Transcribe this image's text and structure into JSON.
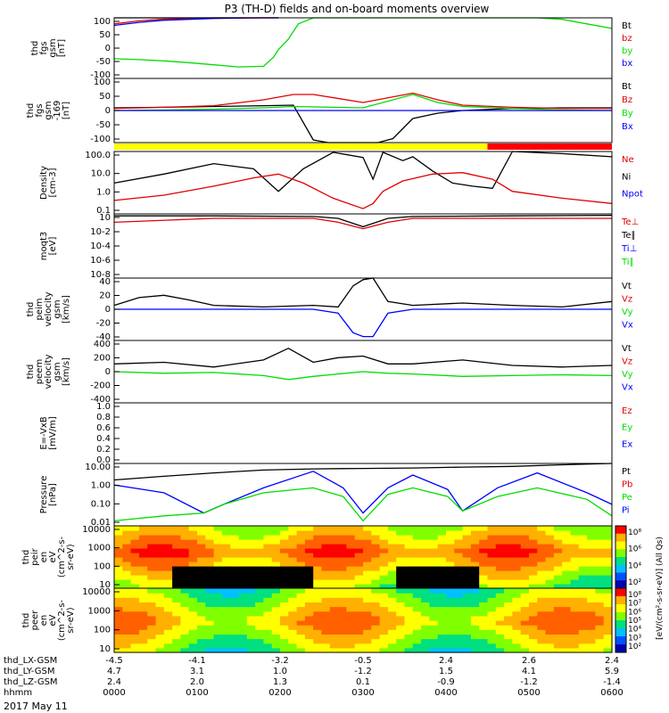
{
  "title": "P3 (TH-D) fields and on-board moments overview",
  "date_label": "2017 May 11",
  "colors": {
    "black": "#000000",
    "red": "#e00000",
    "green": "#00dd00",
    "blue": "#0000ff",
    "yellow": "#ffff00",
    "barred": "#ff0000"
  },
  "chart_data": [
    {
      "id": "fgs",
      "type": "line",
      "ylabel": [
        "thd",
        "fgs",
        "gsm",
        "[nT]"
      ],
      "yticks": [
        "100",
        "50",
        "0",
        "-50",
        "-100"
      ],
      "ylim": [
        -100,
        100
      ],
      "legend": [
        {
          "label": "Bt",
          "color": "black"
        },
        {
          "label": "bz",
          "color": "red"
        },
        {
          "label": "by",
          "color": "green"
        },
        {
          "label": "bx",
          "color": "blue"
        }
      ],
      "series": [
        {
          "name": "Bt",
          "color": "black",
          "x": [
            0,
            0.05,
            0.1,
            0.2,
            0.3,
            0.33
          ],
          "y": [
            100,
            100,
            100,
            100,
            100,
            100
          ]
        },
        {
          "name": "bz",
          "color": "red",
          "x": [
            0,
            0.05,
            0.1,
            0.2,
            0.3,
            0.33
          ],
          "y": [
            80,
            90,
            96,
            100,
            100,
            100
          ]
        },
        {
          "name": "by",
          "color": "green",
          "x": [
            0,
            0.05,
            0.1,
            0.15,
            0.2,
            0.25,
            0.3,
            0.32,
            0.33,
            0.35,
            0.37,
            0.4,
            0.43,
            0.45,
            0.47,
            0.48,
            0.49,
            0.5,
            0.52,
            0.55,
            0.57,
            0.6,
            0.63,
            0.66,
            0.69,
            0.72,
            0.75,
            0.8,
            0.85,
            0.9,
            0.95,
            1.0
          ],
          "y": [
            -35,
            -38,
            -42,
            -48,
            -55,
            -62,
            -60,
            -30,
            -5,
            30,
            80,
            100,
            100,
            100,
            100,
            100,
            100,
            100,
            100,
            100,
            100,
            100,
            100,
            100,
            100,
            100,
            100,
            100,
            100,
            95,
            80,
            65
          ]
        },
        {
          "name": "bx",
          "color": "blue",
          "x": [
            0,
            0.05,
            0.1,
            0.2,
            0.3,
            0.33
          ],
          "y": [
            75,
            85,
            92,
            98,
            100,
            100
          ]
        }
      ]
    },
    {
      "id": "fgs2",
      "type": "line",
      "ylabel": [
        "thd",
        "fgs",
        "gsm",
        "-169",
        "[nT]"
      ],
      "yticks": [
        "100",
        "50",
        "0",
        "-50",
        "-100"
      ],
      "ylim": [
        -120,
        120
      ],
      "legend": [
        {
          "label": "Bt",
          "color": "black"
        },
        {
          "label": "Bz",
          "color": "red"
        },
        {
          "label": "By",
          "color": "green"
        },
        {
          "label": "Bx",
          "color": "blue"
        }
      ],
      "series": [
        {
          "name": "Bt",
          "color": "black",
          "x": [
            0,
            0.1,
            0.2,
            0.3,
            0.36,
            0.4,
            0.43,
            0.45,
            0.5,
            0.53,
            0.56,
            0.6,
            0.65,
            0.7,
            0.8,
            0.9,
            1.0
          ],
          "y": [
            10,
            12,
            15,
            18,
            20,
            -110,
            -120,
            -125,
            -130,
            -120,
            -105,
            -30,
            -10,
            0,
            8,
            10,
            10
          ]
        },
        {
          "name": "Bz",
          "color": "red",
          "x": [
            0,
            0.1,
            0.2,
            0.3,
            0.36,
            0.4,
            0.5,
            0.6,
            0.65,
            0.7,
            0.8,
            0.9,
            1.0
          ],
          "y": [
            8,
            12,
            18,
            40,
            60,
            60,
            30,
            65,
            40,
            20,
            12,
            8,
            8
          ]
        },
        {
          "name": "By",
          "color": "green",
          "x": [
            0,
            0.1,
            0.2,
            0.3,
            0.36,
            0.5,
            0.6,
            0.65,
            0.7,
            0.8,
            0.9,
            1.0
          ],
          "y": [
            0,
            2,
            5,
            10,
            15,
            10,
            60,
            30,
            15,
            8,
            2,
            0
          ]
        },
        {
          "name": "Bx",
          "color": "blue",
          "x": [
            0,
            0.2,
            0.4,
            0.6,
            0.8,
            1.0
          ],
          "y": [
            0,
            0,
            0,
            0,
            0,
            0
          ]
        }
      ]
    },
    {
      "id": "density",
      "type": "line",
      "log": true,
      "ylabel": [
        "Density",
        "[cm-3]"
      ],
      "yticks": [
        "100.0",
        "10.0",
        "1.0",
        "0.1"
      ],
      "ylim": [
        0.05,
        200
      ],
      "legend": [
        {
          "label": "Ne",
          "color": "red"
        },
        {
          "label": "Ni",
          "color": "black"
        },
        {
          "label": "Npot",
          "color": "blue"
        }
      ],
      "series": [
        {
          "name": "Ni",
          "color": "black",
          "x": [
            0,
            0.1,
            0.2,
            0.28,
            0.33,
            0.38,
            0.44,
            0.5,
            0.52,
            0.54,
            0.58,
            0.6,
            0.64,
            0.68,
            0.72,
            0.76,
            0.8,
            0.9,
            1.0
          ],
          "y": [
            3,
            10,
            40,
            20,
            1,
            20,
            180,
            90,
            5,
            180,
            60,
            100,
            15,
            3,
            2,
            1.5,
            200,
            150,
            100
          ]
        },
        {
          "name": "Ne",
          "color": "red",
          "x": [
            0,
            0.1,
            0.2,
            0.28,
            0.33,
            0.38,
            0.44,
            0.5,
            0.52,
            0.54,
            0.58,
            0.64,
            0.7,
            0.76,
            0.8,
            0.9,
            1.0
          ],
          "y": [
            0.3,
            0.6,
            2,
            6,
            10,
            3,
            0.4,
            0.1,
            0.2,
            1,
            4,
            10,
            12,
            5,
            1,
            0.4,
            0.2
          ]
        }
      ]
    },
    {
      "id": "moqt3",
      "type": "line",
      "log": true,
      "ylabel": [
        "moqt3",
        "[eV]"
      ],
      "yticks": [
        "10",
        "10-2",
        "10-4",
        "10-6",
        "10-8"
      ],
      "ylim": [
        1e-08,
        100
      ],
      "legend": [
        {
          "label": "Te⊥",
          "color": "red"
        },
        {
          "label": "Te∥",
          "color": "black"
        },
        {
          "label": "Ti⊥",
          "color": "blue"
        },
        {
          "label": "Ti∥",
          "color": "green"
        }
      ],
      "series": [
        {
          "name": "Te",
          "color": "black",
          "x": [
            0,
            0.2,
            0.4,
            0.45,
            0.5,
            0.55,
            0.6,
            0.8,
            1.0
          ],
          "y": [
            50,
            50,
            40,
            20,
            1,
            20,
            40,
            50,
            60
          ]
        },
        {
          "name": "Ti",
          "color": "red",
          "x": [
            0,
            0.2,
            0.4,
            0.45,
            0.5,
            0.55,
            0.6,
            0.8,
            1.0
          ],
          "y": [
            5,
            20,
            20,
            5,
            0.5,
            5,
            20,
            20,
            20
          ]
        }
      ]
    },
    {
      "id": "peim",
      "type": "line",
      "ylabel": [
        "thd",
        "peim",
        "velocity",
        "gsm",
        "[km/s]"
      ],
      "yticks": [
        "40",
        "20",
        "0",
        "-20",
        "-40"
      ],
      "ylim": [
        -40,
        40
      ],
      "legend": [
        {
          "label": "Vt",
          "color": "black"
        },
        {
          "label": "Vz",
          "color": "red"
        },
        {
          "label": "Vy",
          "color": "green"
        },
        {
          "label": "Vx",
          "color": "blue"
        }
      ],
      "series": [
        {
          "name": "Vt",
          "color": "black",
          "x": [
            0,
            0.05,
            0.1,
            0.15,
            0.2,
            0.3,
            0.4,
            0.45,
            0.48,
            0.5,
            0.52,
            0.55,
            0.6,
            0.7,
            0.8,
            0.9,
            1.0
          ],
          "y": [
            5,
            15,
            18,
            12,
            5,
            3,
            5,
            3,
            30,
            38,
            40,
            10,
            5,
            8,
            5,
            3,
            10
          ]
        },
        {
          "name": "Vx",
          "color": "blue",
          "x": [
            0,
            0.2,
            0.4,
            0.45,
            0.48,
            0.5,
            0.52,
            0.55,
            0.6,
            0.8,
            1.0
          ],
          "y": [
            0,
            0,
            0,
            -5,
            -30,
            -35,
            -35,
            -5,
            0,
            0,
            0
          ]
        }
      ]
    },
    {
      "id": "peem",
      "type": "line",
      "ylabel": [
        "thd",
        "peem",
        "velocity",
        "gsm",
        "[km/s]"
      ],
      "yticks": [
        "400",
        "200",
        "0",
        "-200",
        "-400"
      ],
      "ylim": [
        -400,
        400
      ],
      "legend": [
        {
          "label": "Vt",
          "color": "black"
        },
        {
          "label": "Vz",
          "color": "red"
        },
        {
          "label": "Vy",
          "color": "green"
        },
        {
          "label": "Vx",
          "color": "blue"
        }
      ],
      "series": [
        {
          "name": "Vt",
          "color": "black",
          "x": [
            0,
            0.1,
            0.2,
            0.3,
            0.35,
            0.4,
            0.45,
            0.5,
            0.55,
            0.6,
            0.7,
            0.8,
            0.9,
            1.0
          ],
          "y": [
            100,
            120,
            60,
            150,
            300,
            120,
            180,
            200,
            100,
            100,
            150,
            80,
            60,
            80
          ]
        },
        {
          "name": "Vy",
          "color": "green",
          "x": [
            0,
            0.1,
            0.2,
            0.3,
            0.35,
            0.4,
            0.45,
            0.5,
            0.55,
            0.6,
            0.7,
            0.8,
            0.9,
            1.0
          ],
          "y": [
            0,
            -20,
            -10,
            -50,
            -100,
            -60,
            -30,
            0,
            -20,
            -30,
            -60,
            -50,
            -40,
            -50
          ]
        }
      ]
    },
    {
      "id": "efield",
      "type": "line",
      "ylabel": [
        "E=-VxB",
        "[mV/m]"
      ],
      "yticks": [
        "1.0",
        "0.8",
        "0.6",
        "0.4",
        "0.2",
        "0.0"
      ],
      "ylim": [
        0,
        1
      ],
      "legend": [
        {
          "label": "Ez",
          "color": "red"
        },
        {
          "label": "Ey",
          "color": "green"
        },
        {
          "label": "Ex",
          "color": "blue"
        }
      ],
      "series": []
    },
    {
      "id": "pressure",
      "type": "line",
      "log": true,
      "ylabel": [
        "Pressure",
        "[nPa]"
      ],
      "yticks": [
        "10.00",
        "1.00",
        "0.10",
        "0.01"
      ],
      "ylim": [
        0.005,
        30
      ],
      "legend": [
        {
          "label": "Pt",
          "color": "black"
        },
        {
          "label": "Pb",
          "color": "red"
        },
        {
          "label": "Pe",
          "color": "green"
        },
        {
          "label": "Pi",
          "color": "blue"
        }
      ],
      "series": [
        {
          "name": "Pt",
          "color": "black",
          "x": [
            0,
            0.1,
            0.2,
            0.3,
            0.4,
            0.5,
            0.6,
            0.7,
            0.8,
            0.9,
            1.0
          ],
          "y": [
            3,
            5,
            8,
            12,
            14,
            15,
            16,
            18,
            20,
            25,
            30
          ]
        },
        {
          "name": "Pi",
          "color": "blue",
          "x": [
            0,
            0.1,
            0.18,
            0.22,
            0.3,
            0.4,
            0.46,
            0.5,
            0.55,
            0.6,
            0.67,
            0.7,
            0.77,
            0.85,
            0.95,
            1.0
          ],
          "y": [
            1.5,
            0.5,
            0.03,
            0.1,
            1,
            10,
            1,
            0.03,
            1,
            6,
            0.8,
            0.04,
            1,
            8,
            0.5,
            0.1
          ]
        },
        {
          "name": "Pe",
          "color": "green",
          "x": [
            0,
            0.1,
            0.18,
            0.22,
            0.3,
            0.4,
            0.46,
            0.5,
            0.55,
            0.6,
            0.67,
            0.7,
            0.77,
            0.85,
            0.95,
            1.0
          ],
          "y": [
            0.01,
            0.02,
            0.03,
            0.1,
            0.5,
            1,
            0.3,
            0.01,
            0.4,
            1,
            0.3,
            0.04,
            0.3,
            1,
            0.2,
            0.02
          ]
        }
      ]
    },
    {
      "id": "peir",
      "type": "heatmap",
      "ylabel": [
        "thd",
        "peir",
        "en",
        "eV",
        "(cm^2-s-",
        "sr-eV)"
      ],
      "yticks": [
        "10000",
        "1000",
        "100",
        "10"
      ],
      "colorbar": [
        "10⁸",
        "10⁶",
        "10⁴",
        "10²"
      ]
    },
    {
      "id": "peer",
      "type": "heatmap",
      "ylabel": [
        "thd",
        "peer",
        "en",
        "eV",
        "(cm^2-s-",
        "sr-eV)"
      ],
      "yticks": [
        "10000",
        "1000",
        "100",
        "10"
      ],
      "colorbar": [
        "10⁸",
        "10⁷",
        "10⁶",
        "10⁵",
        "10⁴",
        "10³",
        "10²"
      ]
    }
  ],
  "colorbar_title": "[eV/(cm²-s-sr-eV)] (All Qs)",
  "axis": {
    "rows": [
      {
        "label": "thd_LX-GSM",
        "values": [
          "-4.5",
          "-4.1",
          "-3.2",
          "-0.5",
          "2.4",
          "2.6",
          "2.4"
        ]
      },
      {
        "label": "thd_LY-GSM",
        "values": [
          "4.7",
          "3.1",
          "1.0",
          "-1.2",
          "1.5",
          "4.1",
          "5.9"
        ]
      },
      {
        "label": "thd_LZ-GSM",
        "values": [
          "2.4",
          "2.0",
          "1.3",
          "0.1",
          "-0.9",
          "-1.2",
          "-1.4"
        ]
      },
      {
        "label": "hhmm",
        "values": [
          "0000",
          "0100",
          "0200",
          "0300",
          "0400",
          "0500",
          "0600"
        ]
      }
    ]
  },
  "colorbar_labels": [
    "10⁸",
    "10⁶",
    "10⁴",
    "10²"
  ]
}
